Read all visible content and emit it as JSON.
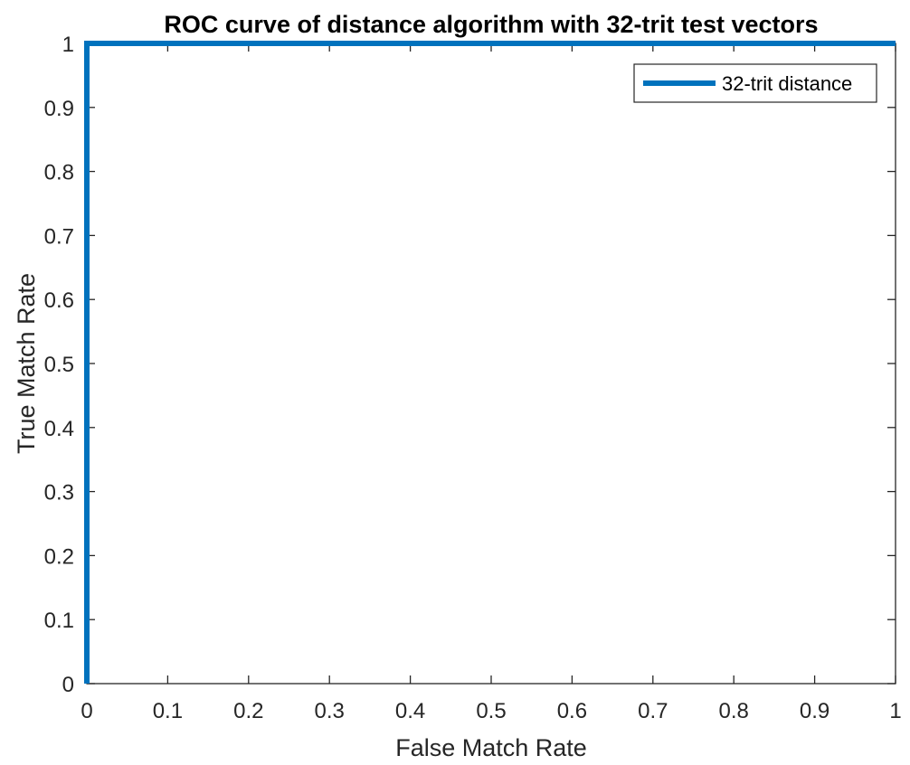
{
  "chart_data": {
    "type": "line",
    "title": "ROC curve of distance algorithm with 32-trit test vectors",
    "xlabel": "False Match Rate",
    "ylabel": "True Match Rate",
    "xlim": [
      0,
      1
    ],
    "ylim": [
      0,
      1
    ],
    "xticks": [
      0,
      0.1,
      0.2,
      0.3,
      0.4,
      0.5,
      0.6,
      0.7,
      0.8,
      0.9,
      1
    ],
    "yticks": [
      0,
      0.1,
      0.2,
      0.3,
      0.4,
      0.5,
      0.6,
      0.7,
      0.8,
      0.9,
      1
    ],
    "xtick_labels": [
      "0",
      "0.1",
      "0.2",
      "0.3",
      "0.4",
      "0.5",
      "0.6",
      "0.7",
      "0.8",
      "0.9",
      "1"
    ],
    "ytick_labels": [
      "0",
      "0.1",
      "0.2",
      "0.3",
      "0.4",
      "0.5",
      "0.6",
      "0.7",
      "0.8",
      "0.9",
      "1"
    ],
    "grid": false,
    "legend_position": "top-right",
    "series": [
      {
        "name": "32-trit distance",
        "color": "#0072BD",
        "x": [
          0,
          0,
          1
        ],
        "y": [
          0,
          1,
          1
        ]
      }
    ]
  }
}
